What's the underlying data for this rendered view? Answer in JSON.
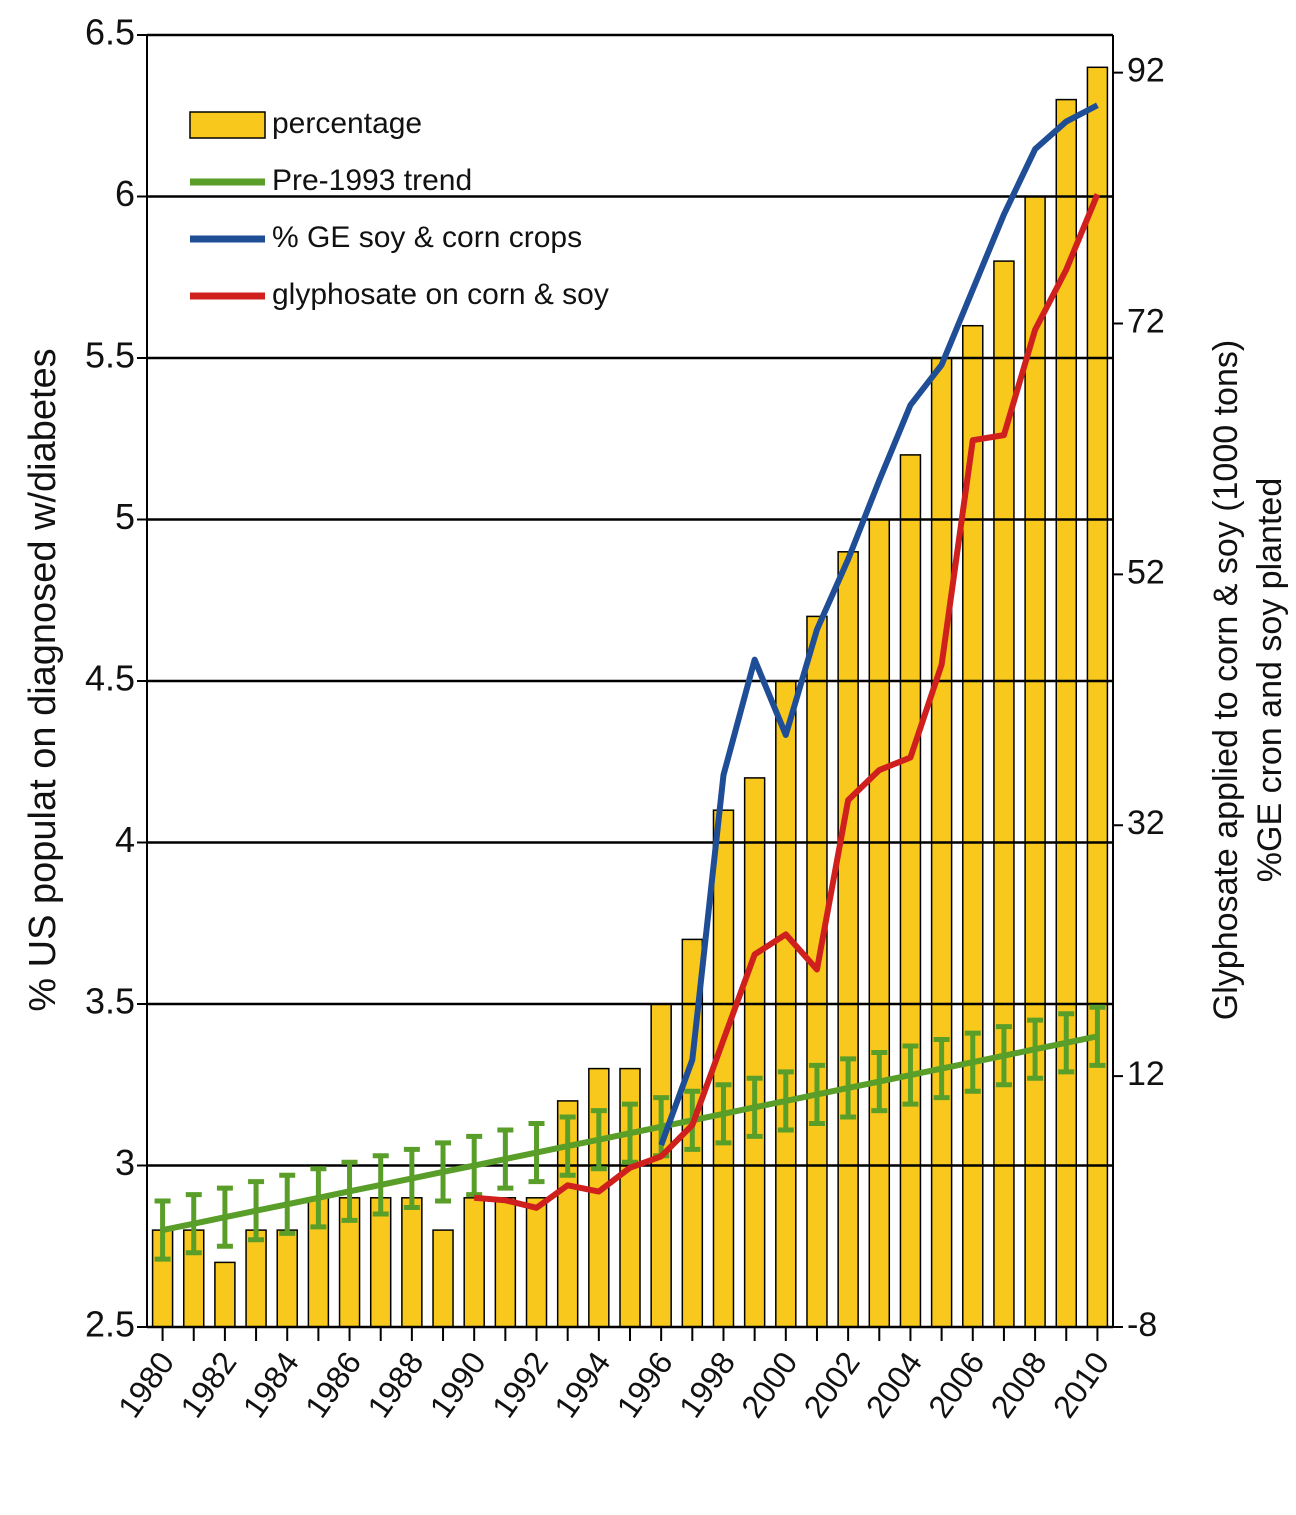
{
  "chart_data": {
    "type": "bar",
    "y_label": "% US populat on diagnosed w/diabetes",
    "y2_label": [
      "Glyphosate applied to corn & soy (1000 tons)",
      "%GE cron and soy planted"
    ],
    "categories": [
      "1980",
      null,
      "1982",
      null,
      "1984",
      null,
      "1986",
      null,
      "1988",
      null,
      "1990",
      null,
      "1992",
      null,
      "1994",
      null,
      "1996",
      null,
      "1998",
      null,
      "2000",
      null,
      "2002",
      null,
      "2004",
      null,
      "2006",
      null,
      "2008",
      null,
      "2010"
    ],
    "ylim": [
      2.5,
      6.5
    ],
    "yticks": [
      2.5,
      3,
      3.5,
      4,
      4.5,
      5,
      5.5,
      6,
      6.5
    ],
    "y2lim": [
      -8,
      95
    ],
    "y2ticks": [
      -8,
      12,
      32,
      52,
      72,
      92
    ],
    "grid": true,
    "legend": "upper left",
    "series": [
      {
        "name": "percentage",
        "type": "bar",
        "color": "#f8c91c",
        "values": [
          2.8,
          2.8,
          2.7,
          2.8,
          2.8,
          2.9,
          2.9,
          2.9,
          2.9,
          2.8,
          2.9,
          2.9,
          2.9,
          3.2,
          3.3,
          3.3,
          3.5,
          3.7,
          4.1,
          4.2,
          4.5,
          4.7,
          4.9,
          5.0,
          5.2,
          5.5,
          5.6,
          5.8,
          6.0,
          6.3,
          6.4
        ]
      },
      {
        "name": "Pre-1993 trend",
        "type": "line",
        "color": "#5a9e2a",
        "values": [
          2.8,
          2.82,
          2.84,
          2.86,
          2.88,
          2.9,
          2.92,
          2.94,
          2.96,
          2.98,
          3.0,
          3.02,
          3.04,
          3.06,
          3.08,
          3.1,
          3.12,
          3.14,
          3.16,
          3.18,
          3.2,
          3.22,
          3.24,
          3.26,
          3.28,
          3.3,
          3.32,
          3.34,
          3.36,
          3.38,
          3.4
        ],
        "errors": [
          0.09,
          0.09,
          0.09,
          0.09,
          0.09,
          0.09,
          0.09,
          0.09,
          0.09,
          0.09,
          0.09,
          0.09,
          0.09,
          0.09,
          0.09,
          0.09,
          0.09,
          0.09,
          0.09,
          0.09,
          0.09,
          0.09,
          0.09,
          0.09,
          0.09,
          0.09,
          0.09,
          0.09,
          0.09,
          0.09,
          0.09
        ]
      },
      {
        "name": "% GE soy & corn crops",
        "type": "line",
        "axis": "y2",
        "color": "#1f4e96",
        "values": [
          null,
          null,
          null,
          null,
          null,
          null,
          null,
          null,
          null,
          null,
          null,
          null,
          null,
          null,
          null,
          null,
          6.5,
          13.3,
          36,
          45.2,
          39.2,
          47.6,
          53.2,
          59.5,
          65.5,
          68.7,
          74.7,
          80.7,
          85.9,
          88.1,
          89.4
        ]
      },
      {
        "name": "glyphosate on corn & soy",
        "type": "line",
        "axis": "y2",
        "color": "#d0201e",
        "values": [
          null,
          null,
          null,
          null,
          null,
          null,
          null,
          null,
          null,
          null,
          2.3,
          2.1,
          1.5,
          3.3,
          2.8,
          4.7,
          5.6,
          8.1,
          14.9,
          21.7,
          23.3,
          20.5,
          34.0,
          36.4,
          37.4,
          44.8,
          62.7,
          63.1,
          71.5,
          76.3,
          82.3
        ]
      }
    ]
  }
}
